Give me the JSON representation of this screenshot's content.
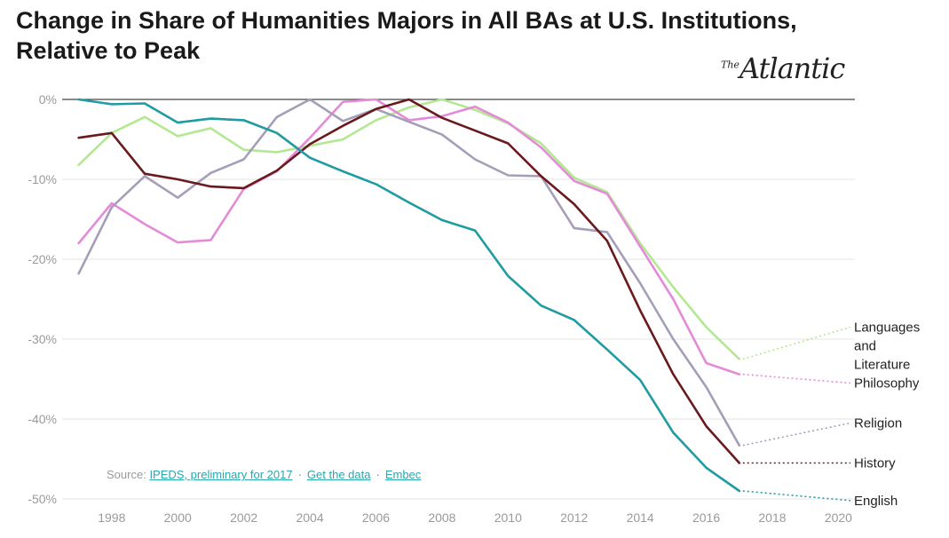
{
  "header": {
    "title": "Change in Share of Humanities Majors in All BAs at U.S. Institutions, Relative to Peak",
    "logo": "Atlantic",
    "logo_prefix": "The"
  },
  "footer": {
    "source_prefix": "Source:",
    "source_link": "IPEDS, preliminary for 2017",
    "data_link": "Get the data",
    "embed_link": "Embec"
  },
  "chart_data": {
    "type": "line",
    "title": "Change in Share of Humanities Majors in All BAs at U.S. Institutions, Relative to Peak",
    "xlabel": "",
    "ylabel": "",
    "xlim": [
      1996.5,
      2020.5
    ],
    "ylim": [
      -50,
      0
    ],
    "x_ticks": [
      "1998",
      "2000",
      "2002",
      "2004",
      "2006",
      "2008",
      "2010",
      "2012",
      "2014",
      "2016",
      "2018",
      "2020"
    ],
    "y_ticks": [
      "0%",
      "-10%",
      "-20%",
      "-30%",
      "-40%",
      "-50%"
    ],
    "grid": true,
    "legend": "line-end labels at right",
    "x": [
      1997,
      1998,
      1999,
      2000,
      2001,
      2002,
      2003,
      2004,
      2005,
      2006,
      2007,
      2008,
      2009,
      2010,
      2011,
      2012,
      2013,
      2014,
      2015,
      2016,
      2017
    ],
    "series": [
      {
        "name": "Languages and Literature",
        "color": "#b3e892",
        "values": [
          -8.2,
          -4.2,
          -2.2,
          -4.6,
          -3.6,
          -6.3,
          -6.6,
          -5.8,
          -5.0,
          -2.6,
          -1.0,
          0.0,
          -1.3,
          -3.0,
          -5.5,
          -9.8,
          -11.6,
          -18.0,
          -23.5,
          -28.5,
          -32.5
        ]
      },
      {
        "name": "Philosophy",
        "color": "#e48ad9",
        "values": [
          -18.0,
          -13.0,
          -15.6,
          -17.9,
          -17.6,
          -11.2,
          -9.0,
          -4.8,
          -0.3,
          0.0,
          -2.6,
          -2.1,
          -0.9,
          -2.9,
          -6.0,
          -10.2,
          -11.8,
          -18.4,
          -25.0,
          -33.0,
          -34.4
        ]
      },
      {
        "name": "Religion",
        "color": "#a69eb8",
        "values": [
          -21.8,
          -13.5,
          -9.6,
          -12.3,
          -9.2,
          -7.5,
          -2.2,
          0.0,
          -2.7,
          -1.2,
          -2.8,
          -4.4,
          -7.5,
          -9.5,
          -9.6,
          -16.1,
          -16.6,
          -23.0,
          -30.0,
          -36.0,
          -43.3
        ]
      },
      {
        "name": "History",
        "color": "#6a1a1c",
        "values": [
          -4.8,
          -4.2,
          -9.3,
          -10.0,
          -10.9,
          -11.1,
          -8.9,
          -5.6,
          -3.3,
          -1.2,
          0.0,
          -2.3,
          -3.9,
          -5.5,
          -9.6,
          -13.1,
          -17.7,
          -26.4,
          -34.4,
          -40.9,
          -45.5
        ]
      },
      {
        "name": "English",
        "color": "#1f9ba2",
        "values": [
          0.0,
          -0.6,
          -0.5,
          -2.9,
          -2.4,
          -2.6,
          -4.2,
          -7.3,
          -9.0,
          -10.6,
          -12.9,
          -15.1,
          -16.4,
          -22.1,
          -25.8,
          -27.6,
          -31.3,
          -35.1,
          -41.7,
          -46.1,
          -49.0
        ]
      }
    ],
    "end_labels": [
      {
        "series": "Languages and Literature",
        "lines": [
          "Languages",
          "and",
          "Literature"
        ],
        "target": -28.5
      },
      {
        "series": "Philosophy",
        "lines": [
          "Philosophy"
        ],
        "target": -35.5
      },
      {
        "series": "Religion",
        "lines": [
          "Religion"
        ],
        "target": -40.5
      },
      {
        "series": "History",
        "lines": [
          "History"
        ],
        "target": -45.5
      },
      {
        "series": "English",
        "lines": [
          "English"
        ],
        "target": -50.2
      }
    ]
  }
}
